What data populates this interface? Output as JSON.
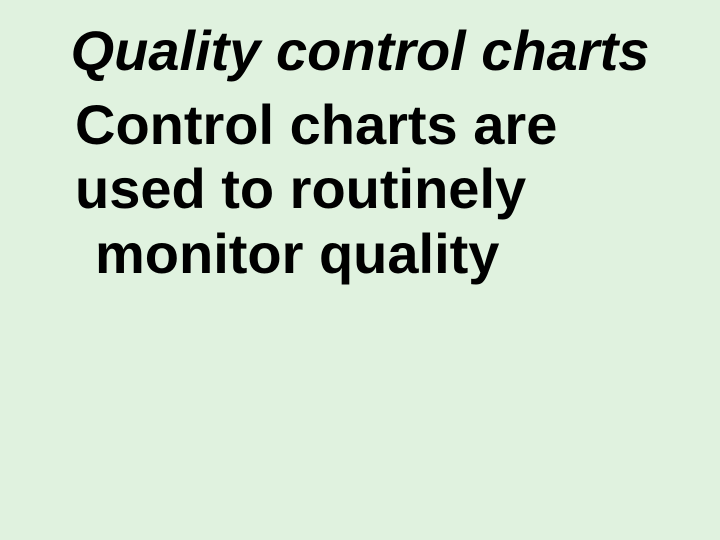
{
  "slide": {
    "title": "Quality control charts",
    "body_line1": "Control charts are",
    "body_line2": "used to routinely",
    "body_line3": "monitor quality",
    "background_color": "#e0f2df",
    "title_color": "#000000",
    "body_color": "#000000",
    "title_fontsize": 56,
    "body_fontsize": 56,
    "title_font_style": "italic",
    "font_weight": "bold",
    "font_family": "Arial"
  }
}
